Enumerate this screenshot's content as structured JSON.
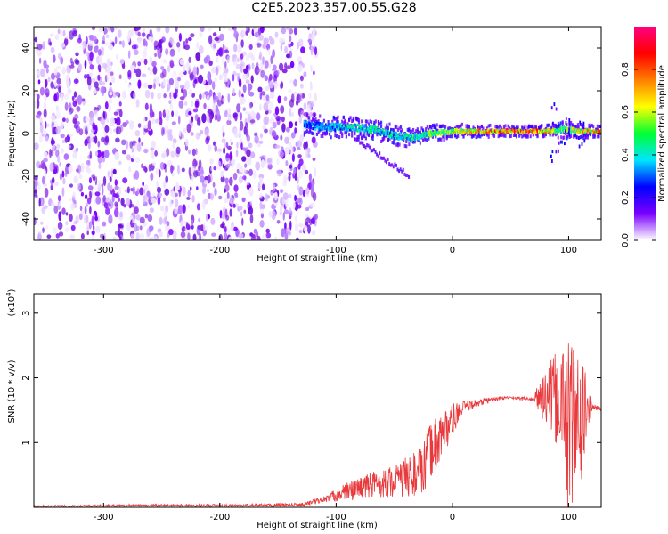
{
  "title": "C2E5.2023.357.00.55.G28",
  "chart_data": [
    {
      "type": "heatmap",
      "xlabel": "Height of straight line (km)",
      "ylabel": "Frequency (Hz)",
      "xlim": [
        -360,
        128
      ],
      "ylim": [
        -50,
        50
      ],
      "xticks": [
        -300,
        -200,
        -100,
        0,
        100
      ],
      "yticks": [
        -40,
        -20,
        0,
        20,
        40
      ],
      "noise_region_x": [
        -360,
        -125
      ],
      "signal_track": {
        "x": [
          -128,
          -110,
          -90,
          -70,
          -50,
          -35,
          -20,
          0,
          20,
          50,
          80,
          95,
          110,
          128
        ],
        "y": [
          4,
          3,
          3,
          2,
          -1,
          -2,
          0,
          1,
          1,
          1,
          1,
          2,
          1,
          1
        ],
        "amp": [
          0.35,
          0.4,
          0.45,
          0.5,
          0.45,
          0.55,
          0.6,
          0.7,
          0.8,
          0.9,
          0.85,
          0.6,
          0.75,
          0.9
        ]
      },
      "colorbar": {
        "label": "Normalized spectral amplitude",
        "ticks": [
          0.0,
          0.2,
          0.4,
          0.6,
          0.8
        ],
        "colors": [
          "#ffffff",
          "#7a00ff",
          "#0000ff",
          "#00e5ff",
          "#00ff33",
          "#ffff00",
          "#ff7f00",
          "#ff0000",
          "#ff0080"
        ]
      }
    },
    {
      "type": "line",
      "xlabel": "Height of straight line (km)",
      "ylabel": "SNR (10 * v/v)",
      "exponent_label": "(x10",
      "exponent": "4",
      "exponent_close": ")",
      "xlim": [
        -360,
        128
      ],
      "ylim": [
        0,
        3.3
      ],
      "xticks": [
        -300,
        -200,
        -100,
        0,
        100
      ],
      "yticks": [
        1,
        2,
        3
      ],
      "color": "#e8393c",
      "envelope": {
        "x": [
          -360,
          -250,
          -180,
          -130,
          -110,
          -90,
          -70,
          -50,
          -35,
          -25,
          -20,
          -10,
          0,
          10,
          20,
          30,
          40,
          50,
          60,
          70,
          75,
          85,
          95,
          100,
          105,
          110,
          115,
          120,
          128
        ],
        "mean": [
          0.02,
          0.03,
          0.03,
          0.04,
          0.12,
          0.25,
          0.35,
          0.4,
          0.5,
          0.55,
          0.85,
          1.1,
          1.35,
          1.55,
          1.6,
          1.65,
          1.68,
          1.7,
          1.68,
          1.67,
          1.7,
          1.7,
          1.6,
          1.3,
          1.2,
          1.3,
          1.5,
          1.55,
          1.52
        ],
        "amp": [
          0.01,
          0.02,
          0.02,
          0.03,
          0.05,
          0.15,
          0.2,
          0.25,
          0.35,
          0.4,
          0.45,
          0.4,
          0.25,
          0.1,
          0.06,
          0.05,
          0.03,
          0.02,
          0.03,
          0.03,
          0.3,
          0.6,
          0.9,
          1.5,
          1.4,
          1.0,
          0.6,
          0.05,
          0.03
        ]
      }
    }
  ]
}
